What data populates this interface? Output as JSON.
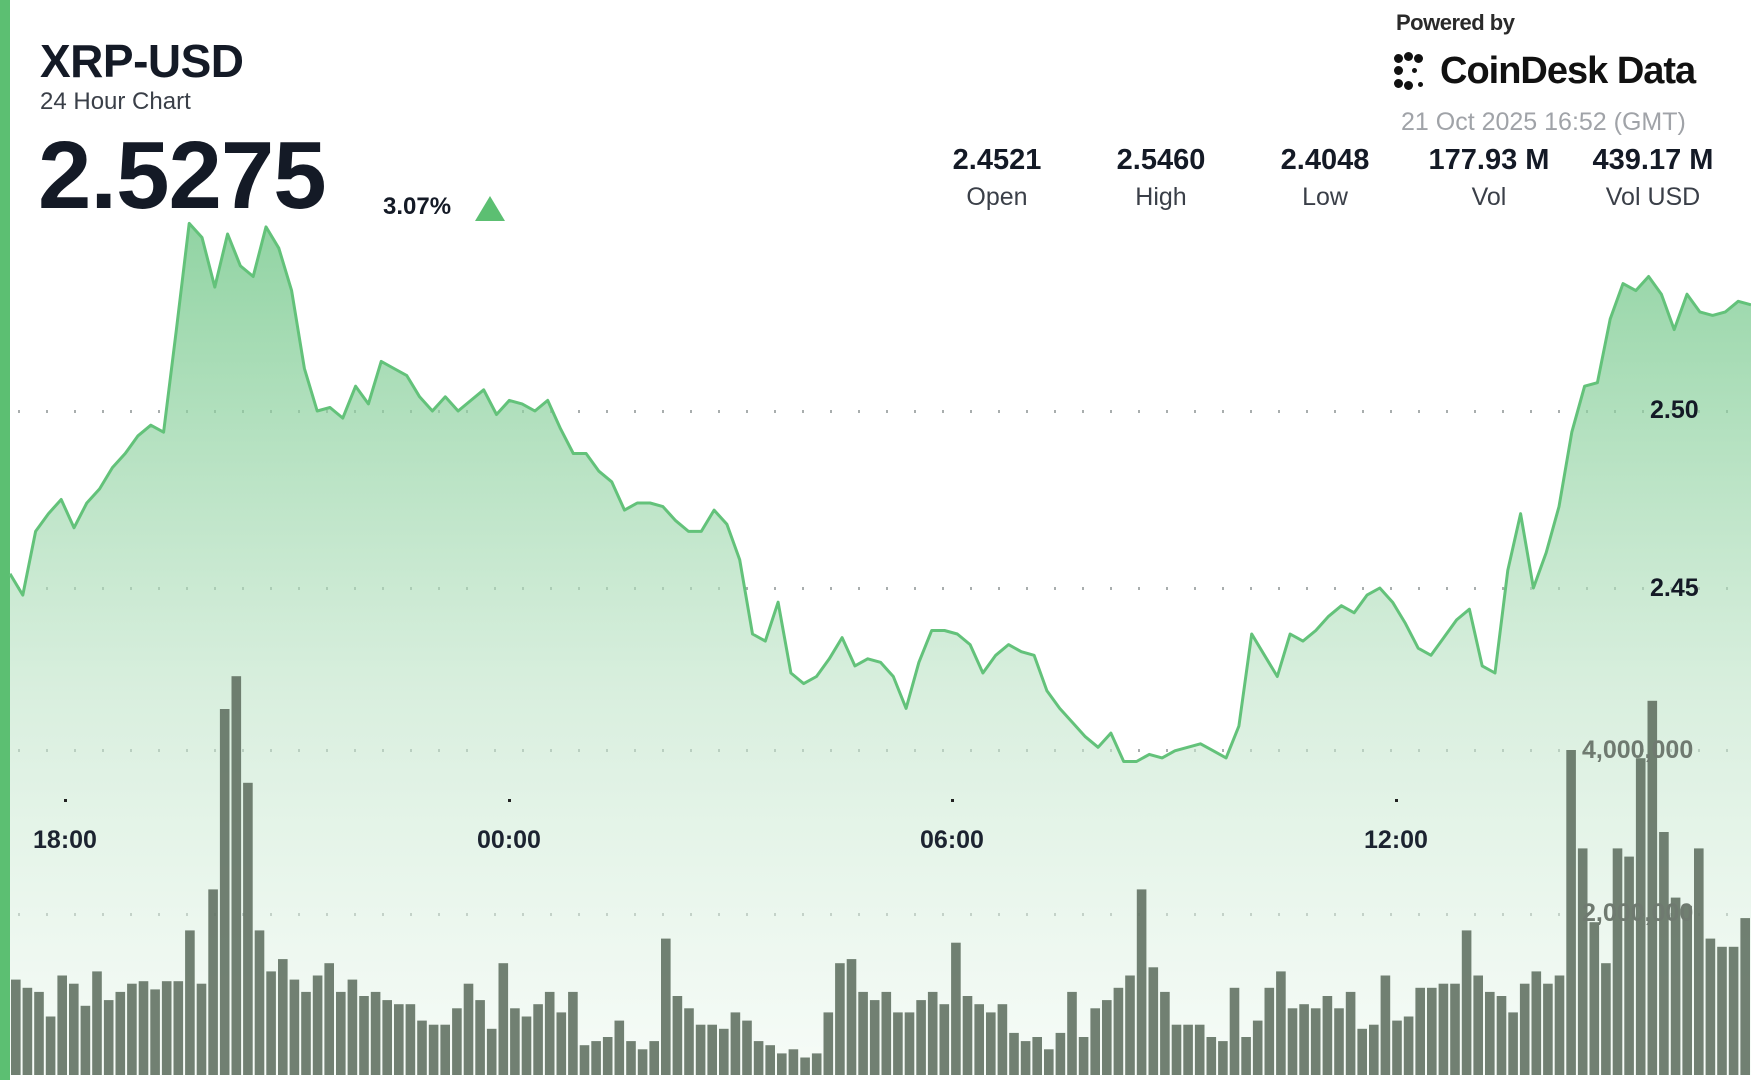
{
  "header": {
    "title": "XRP-USD",
    "subtitle": "24 Hour Chart",
    "price": "2.5275",
    "change_pct": "3.07%",
    "change_direction": "up"
  },
  "branding": {
    "powered_by": "Powered by",
    "name": "CoinDesk Data",
    "timestamp": "21 Oct 2025 16:52 (GMT)"
  },
  "stats": [
    {
      "value": "2.4521",
      "label": "Open"
    },
    {
      "value": "2.5460",
      "label": "High"
    },
    {
      "value": "2.4048",
      "label": "Low"
    },
    {
      "value": "177.93 M",
      "label": "Vol"
    },
    {
      "value": "439.17 M",
      "label": "Vol USD"
    }
  ],
  "colors": {
    "accent": "#5cbf72",
    "line": "#63c27a",
    "volume_bar": "#6b7a6c",
    "text": "#141a26"
  },
  "chart_data": {
    "type": "area",
    "title": "XRP-USD 24 Hour Chart",
    "xlabel": "",
    "ylabel": "",
    "x_ticks": [
      "18:00",
      "00:00",
      "06:00",
      "12:00"
    ],
    "y_ticks": [
      "2.50",
      "2.45"
    ],
    "volume_ticks": [
      "4,000,000",
      "2,000,000"
    ],
    "grid": "dotted horizontal",
    "ylim": [
      2.4,
      2.56
    ],
    "series": [
      {
        "name": "Price",
        "type": "area",
        "values": [
          2.454,
          2.448,
          2.466,
          2.471,
          2.475,
          2.467,
          2.474,
          2.478,
          2.484,
          2.488,
          2.493,
          2.496,
          2.494,
          2.523,
          2.553,
          2.549,
          2.535,
          2.55,
          2.541,
          2.538,
          2.552,
          2.546,
          2.534,
          2.512,
          2.5,
          2.501,
          2.498,
          2.507,
          2.502,
          2.514,
          2.512,
          2.51,
          2.504,
          2.5,
          2.504,
          2.5,
          2.503,
          2.506,
          2.499,
          2.503,
          2.502,
          2.5,
          2.503,
          2.495,
          2.488,
          2.488,
          2.483,
          2.48,
          2.472,
          2.474,
          2.474,
          2.473,
          2.469,
          2.466,
          2.466,
          2.472,
          2.468,
          2.458,
          2.437,
          2.435,
          2.446,
          2.426,
          2.423,
          2.425,
          2.43,
          2.436,
          2.428,
          2.43,
          2.429,
          2.425,
          2.416,
          2.429,
          2.438,
          2.438,
          2.437,
          2.434,
          2.426,
          2.431,
          2.434,
          2.432,
          2.431,
          2.421,
          2.416,
          2.412,
          2.408,
          2.405,
          2.409,
          2.401,
          2.401,
          2.403,
          2.402,
          2.404,
          2.405,
          2.406,
          2.404,
          2.402,
          2.411,
          2.437,
          2.431,
          2.425,
          2.437,
          2.435,
          2.438,
          2.442,
          2.445,
          2.443,
          2.448,
          2.45,
          2.446,
          2.44,
          2.433,
          2.431,
          2.436,
          2.441,
          2.444,
          2.428,
          2.426,
          2.455,
          2.471,
          2.45,
          2.46,
          2.473,
          2.494,
          2.507,
          2.508,
          2.526,
          2.536,
          2.534,
          2.538,
          2.533,
          2.523,
          2.533,
          2.528,
          2.527,
          2.528,
          2.531,
          2.53
        ]
      },
      {
        "name": "Volume",
        "type": "bar",
        "values": [
          1200000,
          1100000,
          1050000,
          750000,
          1250000,
          1150000,
          880000,
          1300000,
          950000,
          1050000,
          1150000,
          1180000,
          1080000,
          1180000,
          1180000,
          1800000,
          1150000,
          2300000,
          4500000,
          4900000,
          3600000,
          1800000,
          1300000,
          1450000,
          1200000,
          1050000,
          1250000,
          1400000,
          1050000,
          1200000,
          1000000,
          1050000,
          950000,
          900000,
          900000,
          700000,
          650000,
          650000,
          850000,
          1150000,
          950000,
          600000,
          1400000,
          850000,
          750000,
          900000,
          1050000,
          800000,
          1050000,
          400000,
          450000,
          500000,
          700000,
          450000,
          350000,
          450000,
          1700000,
          1000000,
          850000,
          650000,
          650000,
          600000,
          800000,
          700000,
          450000,
          400000,
          300000,
          350000,
          250000,
          300000,
          800000,
          1400000,
          1450000,
          1050000,
          950000,
          1050000,
          800000,
          800000,
          950000,
          1050000,
          900000,
          1650000,
          1000000,
          900000,
          800000,
          900000,
          550000,
          450000,
          500000,
          350000,
          550000,
          1050000,
          500000,
          850000,
          950000,
          1100000,
          1250000,
          2300000,
          1350000,
          1050000,
          650000,
          650000,
          650000,
          500000,
          450000,
          1100000,
          500000,
          700000,
          1100000,
          1300000,
          850000,
          900000,
          850000,
          1000000,
          850000,
          1050000,
          600000,
          650000,
          1250000,
          700000,
          750000,
          1100000,
          1100000,
          1150000,
          1150000,
          1800000,
          1250000,
          1050000,
          1000000,
          800000,
          1150000,
          1300000,
          1150000,
          1250000,
          4000000,
          2800000,
          1900000,
          1400000,
          2800000,
          2700000,
          3900000,
          4600000,
          3000000,
          2200000,
          2100000,
          2800000,
          1700000,
          1600000,
          1600000,
          1950000
        ]
      }
    ]
  }
}
